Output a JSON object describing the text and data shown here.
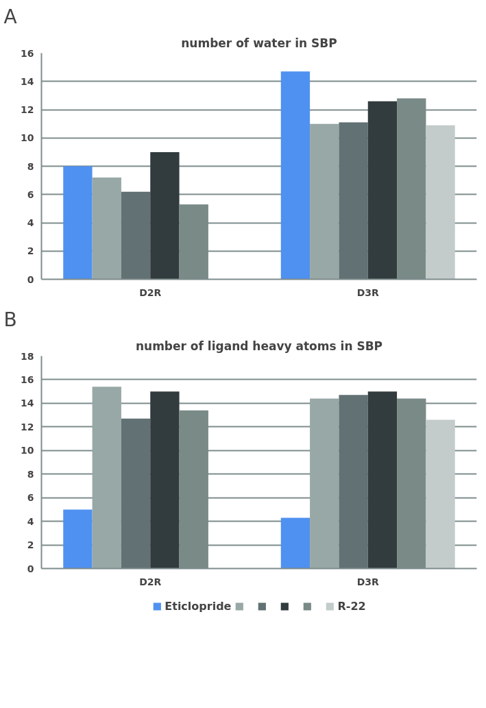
{
  "chart_data": [
    {
      "type": "bar",
      "title": "number of water in SBP",
      "annotations": [
        "A"
      ],
      "categories": [
        "D2R",
        "D3R"
      ],
      "tick_labels": "y",
      "ylim": [
        0,
        16
      ],
      "yticks": [
        0,
        2,
        4,
        6,
        8,
        10,
        12,
        14,
        16
      ],
      "grid": "y",
      "series": [
        {
          "color": "#4f91f0",
          "values": [
            8.0,
            14.7
          ]
        },
        {
          "color": "#98a8a6",
          "values": [
            7.2,
            11.0
          ]
        },
        {
          "color": "#627173",
          "values": [
            6.2,
            11.1
          ]
        },
        {
          "color": "#323b3d",
          "values": [
            9.0,
            12.6
          ]
        },
        {
          "color": "#798a87",
          "values": [
            5.3,
            12.8
          ]
        },
        {
          "color": "#c3cccb",
          "values": [
            null,
            10.9
          ]
        }
      ]
    },
    {
      "type": "bar",
      "title": "number of ligand heavy atoms in SBP",
      "annotations": [
        "B"
      ],
      "categories": [
        "D2R",
        "D3R"
      ],
      "ylim": [
        0,
        18
      ],
      "yticks": [
        0,
        2,
        4,
        6,
        8,
        10,
        12,
        14,
        16,
        18
      ],
      "grid": "y",
      "legend": "bottom",
      "series": [
        {
          "name": "Eticlopride",
          "color": "#4f91f0",
          "values": [
            5.0,
            4.3
          ]
        },
        {
          "color": "#98a8a6",
          "values": [
            15.4,
            14.4
          ]
        },
        {
          "color": "#627173",
          "values": [
            12.7,
            14.7
          ]
        },
        {
          "color": "#323b3d",
          "values": [
            15.0,
            15.0
          ]
        },
        {
          "color": "#798a87",
          "values": [
            13.4,
            14.4
          ]
        },
        {
          "name": "R-22",
          "color": "#c3cccb",
          "values": [
            null,
            12.6
          ]
        }
      ]
    }
  ]
}
